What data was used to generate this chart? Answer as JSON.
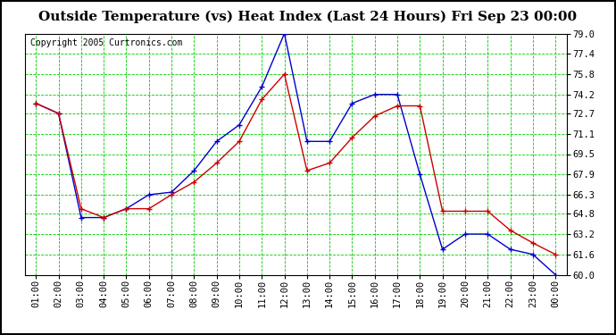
{
  "title": "Outside Temperature (vs) Heat Index (Last 24 Hours) Fri Sep 23 00:00",
  "copyright": "Copyright 2005 Curtronics.com",
  "x_labels": [
    "01:00",
    "02:00",
    "03:00",
    "04:00",
    "05:00",
    "06:00",
    "07:00",
    "08:00",
    "09:00",
    "10:00",
    "11:00",
    "12:00",
    "13:00",
    "14:00",
    "15:00",
    "16:00",
    "17:00",
    "18:00",
    "19:00",
    "20:00",
    "21:00",
    "22:00",
    "23:00",
    "00:00"
  ],
  "blue_values": [
    73.5,
    72.7,
    64.5,
    64.5,
    65.2,
    66.3,
    66.5,
    68.2,
    70.5,
    71.8,
    74.8,
    79.0,
    70.5,
    70.5,
    73.5,
    74.2,
    74.2,
    67.9,
    62.0,
    63.2,
    63.2,
    62.0,
    61.6,
    60.0
  ],
  "red_values": [
    73.5,
    72.7,
    65.2,
    64.5,
    65.2,
    65.2,
    66.3,
    67.3,
    68.8,
    70.5,
    73.8,
    75.8,
    68.2,
    68.8,
    70.8,
    72.5,
    73.3,
    73.3,
    65.0,
    65.0,
    65.0,
    63.5,
    62.5,
    61.6
  ],
  "blue_color": "#0000cc",
  "red_color": "#cc0000",
  "bg_color": "#ffffff",
  "plot_bg_color": "#ffffff",
  "grid_color": "#00cc00",
  "ylim_min": 60.0,
  "ylim_max": 79.0,
  "yticks": [
    79.0,
    77.4,
    75.8,
    74.2,
    72.7,
    71.1,
    69.5,
    67.9,
    66.3,
    64.8,
    63.2,
    61.6,
    60.0
  ],
  "title_fontsize": 11,
  "copyright_fontsize": 7,
  "tick_fontsize": 7.5,
  "marker_size": 4,
  "linewidth": 1.0
}
